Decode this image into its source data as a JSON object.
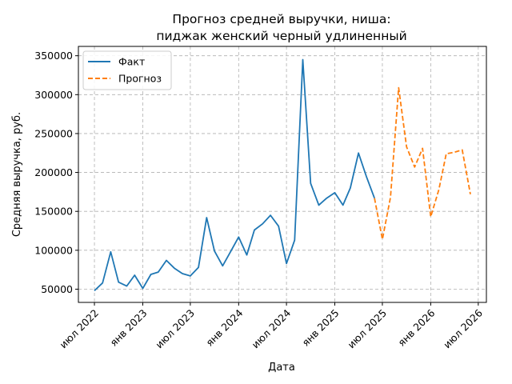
{
  "chart_data": {
    "type": "line",
    "title_lines": [
      "Прогноз средней выручки, ниша:",
      "пиджак женский черный удлиненный"
    ],
    "xlabel": "Дата",
    "ylabel": "Средняя выручка, руб.",
    "x_ticks": [
      {
        "date": "2022-07-01",
        "label": "июл 2022"
      },
      {
        "date": "2023-01-01",
        "label": "янв 2023"
      },
      {
        "date": "2023-07-01",
        "label": "июл 2023"
      },
      {
        "date": "2024-01-01",
        "label": "янв 2024"
      },
      {
        "date": "2024-07-01",
        "label": "июл 2024"
      },
      {
        "date": "2025-01-01",
        "label": "янв 2025"
      },
      {
        "date": "2025-07-01",
        "label": "июл 2025"
      },
      {
        "date": "2026-01-01",
        "label": "янв 2026"
      },
      {
        "date": "2026-07-01",
        "label": "июл 2026"
      }
    ],
    "y_ticks": [
      50000,
      100000,
      150000,
      200000,
      250000,
      300000,
      350000
    ],
    "xlim": [
      "2022-05-01",
      "2026-08-01"
    ],
    "ylim": [
      33000,
      362000
    ],
    "grid": true,
    "legend_position": "top-left",
    "series": [
      {
        "name": "Факт",
        "color": "#1f77b4",
        "style": "solid",
        "x": [
          "2022-07-01",
          "2022-08-01",
          "2022-09-01",
          "2022-10-01",
          "2022-11-01",
          "2022-12-01",
          "2023-01-01",
          "2023-02-01",
          "2023-03-01",
          "2023-04-01",
          "2023-05-01",
          "2023-06-01",
          "2023-07-01",
          "2023-08-01",
          "2023-09-01",
          "2023-10-01",
          "2023-11-01",
          "2023-12-01",
          "2024-01-01",
          "2024-02-01",
          "2024-03-01",
          "2024-04-01",
          "2024-05-01",
          "2024-06-01",
          "2024-07-01",
          "2024-08-01",
          "2024-09-01",
          "2024-10-01",
          "2024-11-01",
          "2024-12-01",
          "2025-01-01",
          "2025-02-01",
          "2025-03-01",
          "2025-04-01",
          "2025-05-01",
          "2025-06-01"
        ],
        "y": [
          48000,
          58000,
          98000,
          59000,
          54000,
          68000,
          51000,
          69000,
          72000,
          87000,
          77000,
          70000,
          67000,
          78000,
          142000,
          99000,
          80000,
          98000,
          117000,
          94000,
          126000,
          134000,
          145000,
          131000,
          83000,
          113000,
          345000,
          186000,
          158000,
          167000,
          174000,
          158000,
          180000,
          225000,
          195000,
          167000
        ]
      },
      {
        "name": "Прогноз",
        "color": "#ff7f0e",
        "style": "dashed",
        "x": [
          "2025-06-01",
          "2025-07-01",
          "2025-08-01",
          "2025-09-01",
          "2025-10-01",
          "2025-11-01",
          "2025-12-01",
          "2026-01-01",
          "2026-02-01",
          "2026-03-01",
          "2026-04-01",
          "2026-05-01",
          "2026-06-01"
        ],
        "y": [
          167000,
          114000,
          168000,
          309000,
          233000,
          207000,
          231000,
          143000,
          178000,
          224000,
          226000,
          229000,
          172000
        ]
      }
    ]
  }
}
